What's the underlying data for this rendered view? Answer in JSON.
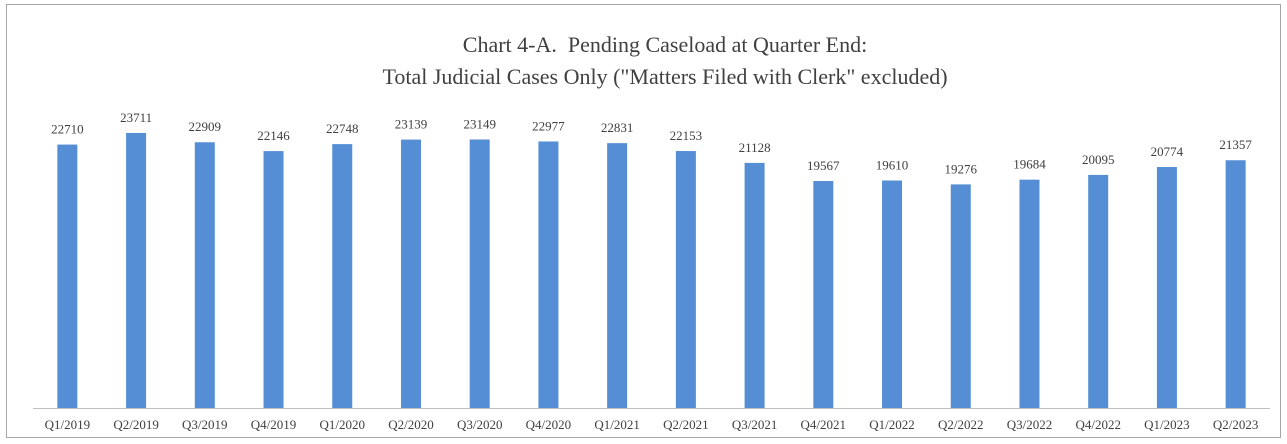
{
  "chart_data": {
    "type": "bar",
    "title": [
      "Chart 4-A.  Pending Caseload at Quarter End:",
      "Total Judicial Cases Only (\"Matters Filed with Clerk\" excluded)"
    ],
    "categories": [
      "Q1/2019",
      "Q2/2019",
      "Q3/2019",
      "Q4/2019",
      "Q1/2020",
      "Q2/2020",
      "Q3/2020",
      "Q4/2020",
      "Q1/2021",
      "Q2/2021",
      "Q3/2021",
      "Q4/2021",
      "Q1/2022",
      "Q2/2022",
      "Q3/2022",
      "Q4/2022",
      "Q1/2023",
      "Q2/2023"
    ],
    "values": [
      22710,
      23711,
      22909,
      22146,
      22748,
      23139,
      23149,
      22977,
      22831,
      22153,
      21128,
      19567,
      19610,
      19276,
      19684,
      20095,
      20774,
      21357
    ],
    "color": "#558ed5",
    "ylim": [
      0,
      25000
    ]
  }
}
